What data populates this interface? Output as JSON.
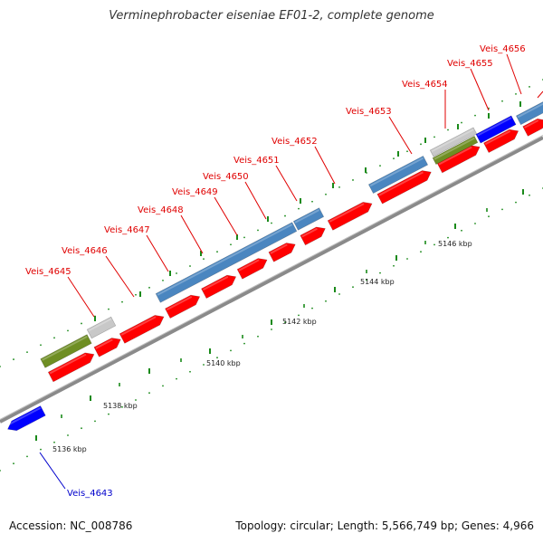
{
  "title": "Verminephrobacter eiseniae EF01-2, complete genome",
  "accession": "Accession: NC_008786",
  "summary": "Topology: circular; Length: 5,566,749 bp; Genes: 4,966",
  "colors": {
    "cds": "#ff0000",
    "blue_feature": "#0000ff",
    "steel_feature": "#4a86c0",
    "olive_feature": "#6e8e23",
    "gray_feature": "#c8c8c8",
    "backbone": "#8a8a8a",
    "tick": "#1a8a1a",
    "label_fwd": "#e00000",
    "label_rev": "#0000cc"
  },
  "ticks": [
    "5136 kbp",
    "5138 kbp",
    "5140 kbp",
    "5142 kbp",
    "5144 kbp",
    "5146 kbp"
  ],
  "gene_labels_forward": [
    "Veis_4645",
    "Veis_4646",
    "Veis_4647",
    "Veis_4648",
    "Veis_4649",
    "Veis_4650",
    "Veis_4651",
    "Veis_4652",
    "Veis_4653",
    "Veis_4654",
    "Veis_4655",
    "Veis_4656"
  ],
  "gene_labels_reverse": [
    "Veis_4643"
  ]
}
